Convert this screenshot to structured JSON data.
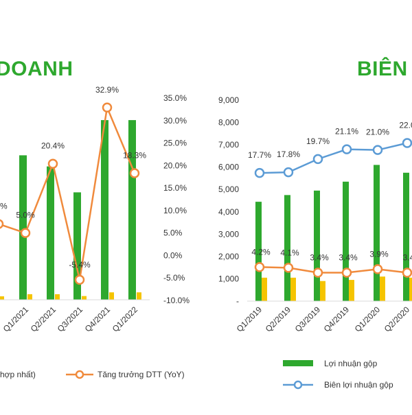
{
  "titles": {
    "left": "DOANH",
    "right": "BIÊN L"
  },
  "colors": {
    "bar_green": "#2ea82e",
    "bar_yellow": "#f5c400",
    "line_orange": "#f08a3c",
    "line_blue": "#5b9bd5",
    "title_green": "#2ea82e",
    "text": "#333333"
  },
  "chart_data": [
    {
      "type": "bar",
      "title": "DOANH",
      "categories": [
        "Q1/2021",
        "Q2/2021",
        "Q3/2021",
        "Q4/2021",
        "Q1/2022"
      ],
      "series": [
        {
          "name": "",
          "kind": "bar",
          "axis": "left",
          "values_relative": [
            0.78,
            0.72,
            0.58,
            0.97,
            0.97
          ],
          "note_visible": "bar"
        },
        {
          "name": "",
          "kind": "bar",
          "axis": "left",
          "values_relative": [
            0.03,
            0.03,
            0.02,
            0.04,
            0.04
          ],
          "note_visible": "bar"
        },
        {
          "name": "Tăng trưởng DTT (YoY)",
          "kind": "line",
          "axis": "right",
          "values": [
            5.0,
            20.4,
            -5.4,
            32.9,
            18.3
          ],
          "labels": [
            "5.0%",
            "20.4%",
            "-5.4%",
            "32.9%",
            "18.3%"
          ]
        }
      ],
      "partial_left": {
        "line_value": 7.0,
        "label": "%"
      },
      "right_axis": {
        "ticks": [
          "35.0%",
          "30.0%",
          "25.0%",
          "20.0%",
          "15.0%",
          "10.0%",
          "5.0%",
          "0.0%",
          "-5.0%",
          "-10.0%"
        ],
        "range": [
          -10,
          35
        ]
      },
      "legend": [
        {
          "kind": "bar",
          "label": "hợp nhất)"
        },
        {
          "kind": "line",
          "label": "Tăng trưởng DTT (YoY)"
        }
      ]
    },
    {
      "type": "bar",
      "title": "BIÊN L",
      "categories": [
        "Q1/2019",
        "Q2/2019",
        "Q3/2019",
        "Q4/2019",
        "Q1/2020",
        "Q2/2020"
      ],
      "left_axis": {
        "ticks": [
          "9,000",
          "8,000",
          "7,000",
          "6,000",
          "5,000",
          "4,000",
          "3,000",
          "2,000",
          "1,000",
          "-"
        ],
        "range": [
          0,
          9000
        ]
      },
      "series": [
        {
          "name": "Lợi nhuận gộp",
          "kind": "bar",
          "axis": "left",
          "values": [
            4450,
            4750,
            4950,
            5350,
            6100,
            5750
          ]
        },
        {
          "name": "",
          "kind": "bar",
          "axis": "left",
          "values": [
            1050,
            1050,
            900,
            950,
            1100,
            1050
          ]
        },
        {
          "name": "Biên lợi nhuận gộp",
          "kind": "line",
          "axis": "right",
          "values": [
            17.7,
            17.8,
            19.7,
            21.1,
            21.0,
            22.0
          ],
          "labels": [
            "17.7%",
            "17.8%",
            "19.7%",
            "21.1%",
            "21.0%",
            "22.0"
          ]
        },
        {
          "name": "",
          "kind": "line",
          "axis": "right",
          "values": [
            4.2,
            4.1,
            3.4,
            3.4,
            3.9,
            3.4
          ],
          "labels": [
            "4.2%",
            "4.1%",
            "3.4%",
            "3.4%",
            "3.9%",
            "3.4"
          ]
        }
      ],
      "legend": [
        {
          "kind": "bar",
          "label": "Lợi nhuận gộp"
        },
        {
          "kind": "line",
          "label": "Biên lợi nhuận gộp"
        }
      ]
    }
  ]
}
